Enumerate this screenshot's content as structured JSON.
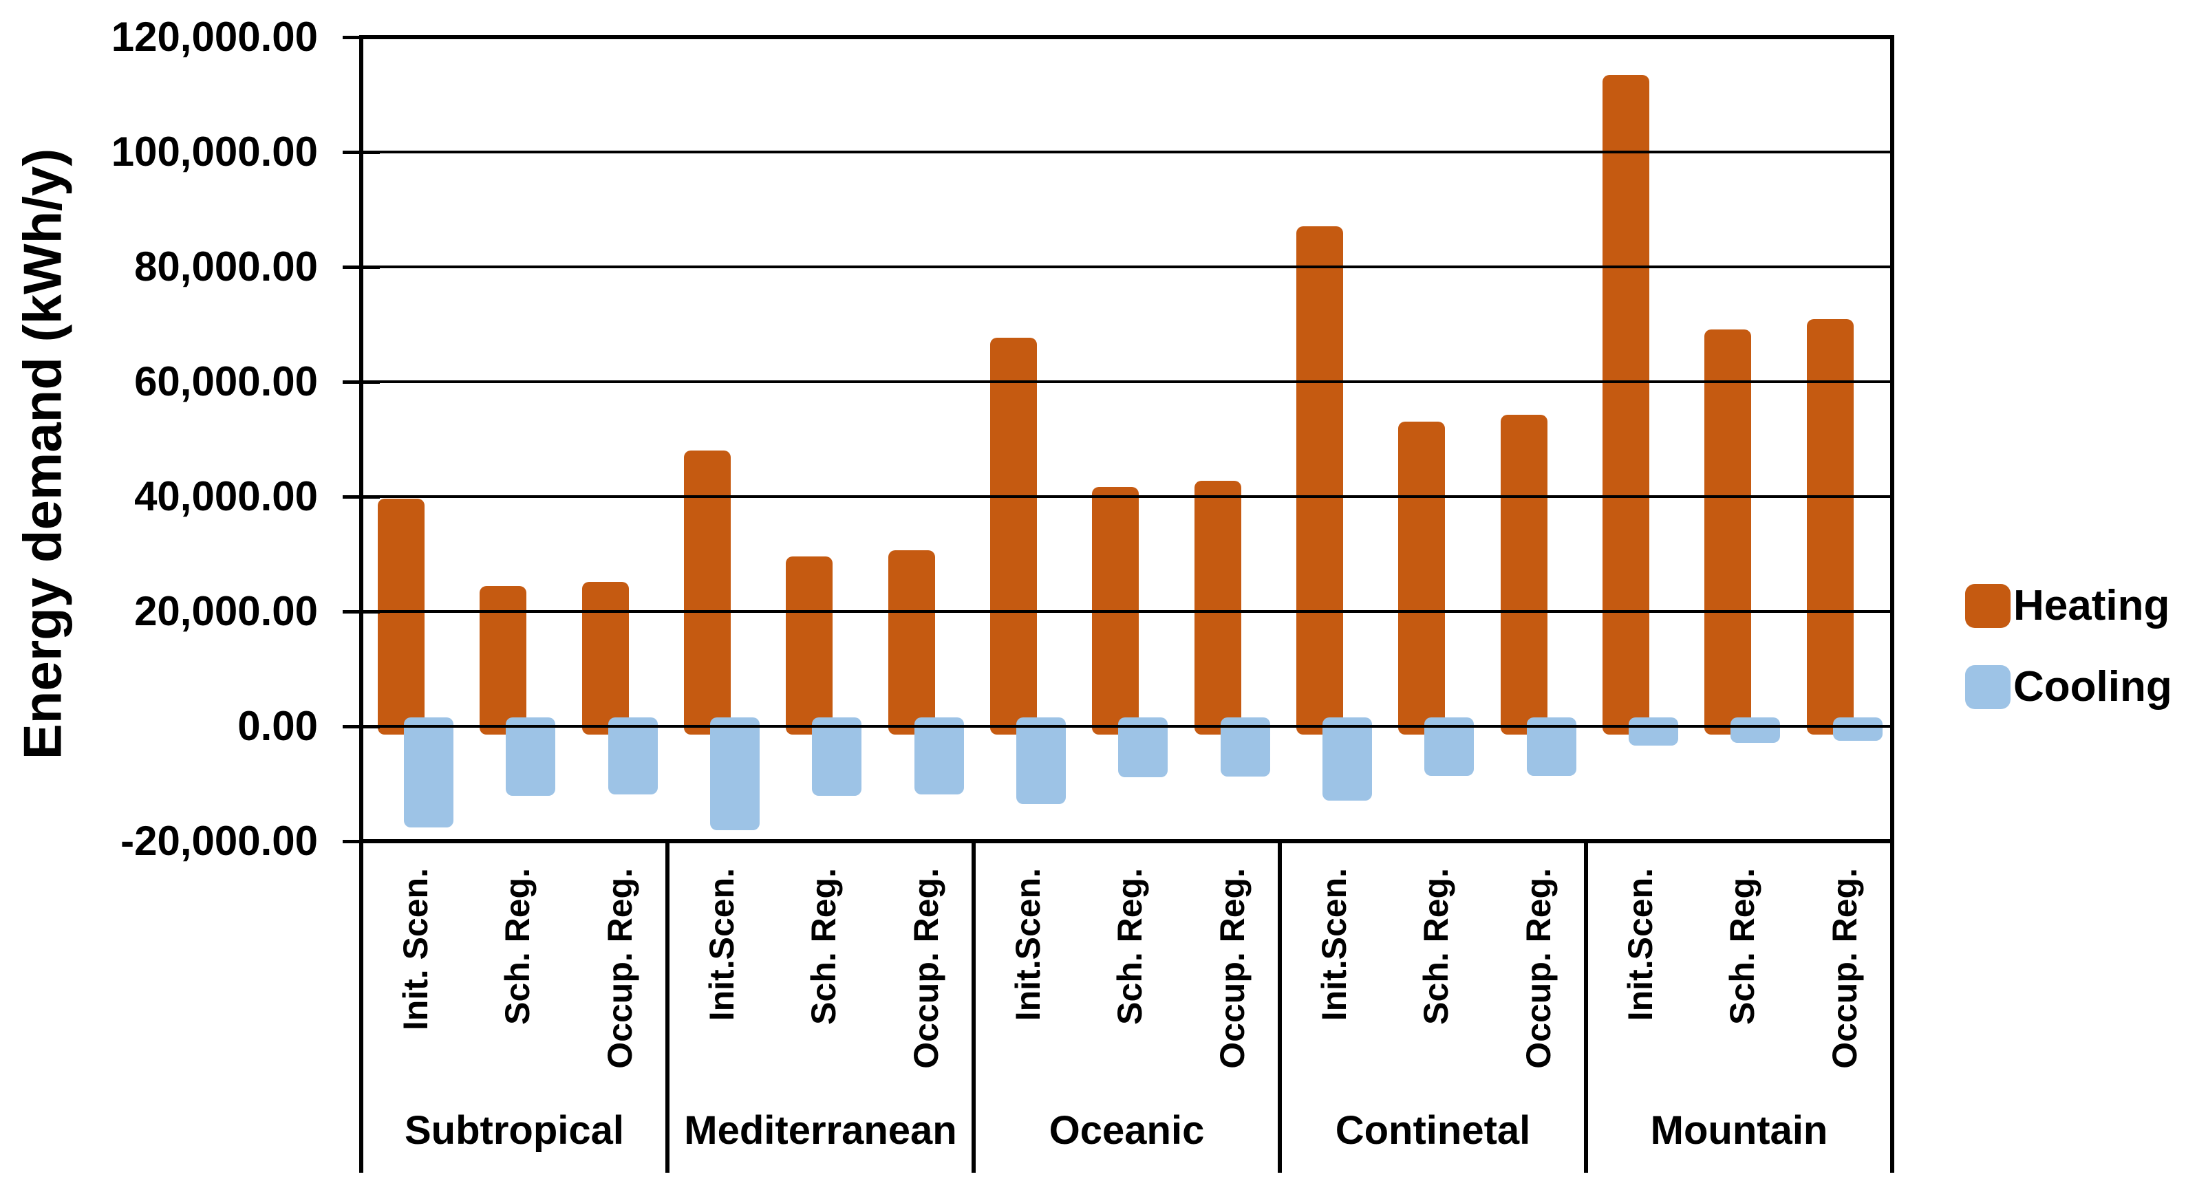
{
  "chart_data": {
    "type": "bar",
    "title": "",
    "xlabel": "",
    "ylabel": "Energy demand (kWh/y)",
    "ylim": [
      -20000,
      120000
    ],
    "ytick_step": 20000,
    "grid": true,
    "legend_position": "right",
    "yticks": [
      {
        "value": 120000,
        "label": "120,000.00"
      },
      {
        "value": 100000,
        "label": "100,000.00"
      },
      {
        "value": 80000,
        "label": "80,000.00"
      },
      {
        "value": 60000,
        "label": "60,000.00"
      },
      {
        "value": 40000,
        "label": "40,000.00"
      },
      {
        "value": 20000,
        "label": "20,000.00"
      },
      {
        "value": 0,
        "label": "0.00"
      },
      {
        "value": -20000,
        "label": "-20,000.00"
      }
    ],
    "series": [
      {
        "name": "Heating",
        "color": "#C55A11"
      },
      {
        "name": "Cooling",
        "color": "#9DC3E6"
      }
    ],
    "groups": [
      {
        "label": "Subtropical",
        "scenarios": [
          "Init. Scen.",
          "Sch. Reg.",
          "Occup. Reg."
        ],
        "heating": [
          39700,
          24400,
          25200
        ],
        "cooling": [
          -17600,
          -12100,
          -11800
        ]
      },
      {
        "label": "Mediterranean",
        "scenarios": [
          "Init.Scen.",
          "Sch. Reg.",
          "Occup. Reg."
        ],
        "heating": [
          48000,
          29600,
          30600
        ],
        "cooling": [
          -18100,
          -12100,
          -11800
        ]
      },
      {
        "label": "Oceanic",
        "scenarios": [
          "Init.Scen.",
          "Sch. Reg.",
          "Occup. Reg."
        ],
        "heating": [
          67700,
          41700,
          42800
        ],
        "cooling": [
          -13500,
          -8900,
          -8700
        ]
      },
      {
        "label": "Continetal",
        "scenarios": [
          "Init.Scen.",
          "Sch. Reg.",
          "Occup. Reg."
        ],
        "heating": [
          87100,
          53000,
          54300
        ],
        "cooling": [
          -12900,
          -8600,
          -8600
        ]
      },
      {
        "label": "Mountain",
        "scenarios": [
          "Init.Scen.",
          "Sch. Reg.",
          "Occup. Reg."
        ],
        "heating": [
          113400,
          69100,
          70900
        ],
        "cooling": [
          -3400,
          -2900,
          -2500
        ]
      }
    ]
  }
}
